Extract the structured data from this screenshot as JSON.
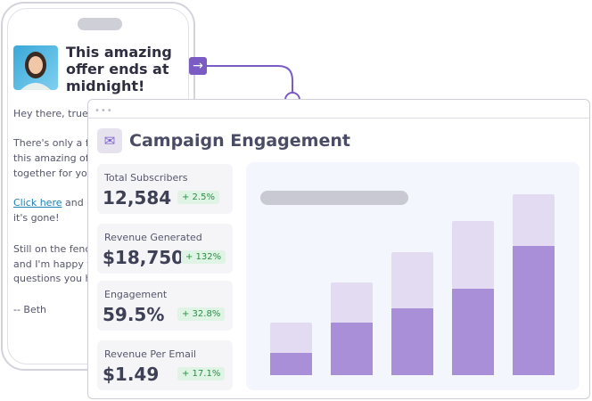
{
  "email": {
    "headline": [
      "This amazing",
      "offer ends at",
      "midnight!"
    ],
    "lines": [
      "Hey there, true b",
      "There's only a fe",
      "this amazing offe",
      "together for you.",
      "it's gone!",
      "Still on the fence",
      "and I'm happy to",
      "questions you ha",
      "-- Beth"
    ],
    "link": "Click here",
    "link_rest": " and ge"
  },
  "dashboard": {
    "title": "Campaign Engagement",
    "stats": [
      {
        "label": "Total Subscribers",
        "value": "12,584",
        "change": "+ 2.5%"
      },
      {
        "label": "Revenue Generated",
        "value": "$18,750",
        "change": "+ 132%"
      },
      {
        "label": "Engagement",
        "value": "59.5%",
        "change": "+ 32.8%"
      },
      {
        "label": "Revenue Per Email",
        "value": "$1.49",
        "change": "+ 17.1%"
      }
    ]
  },
  "chart_data": {
    "type": "bar",
    "series": [
      {
        "color": "#a88fd8",
        "values": [
          25,
          59,
          75,
          97,
          145
        ]
      },
      {
        "color": "#e3dbf2",
        "values": [
          34,
          45,
          63,
          76,
          58
        ]
      }
    ]
  }
}
